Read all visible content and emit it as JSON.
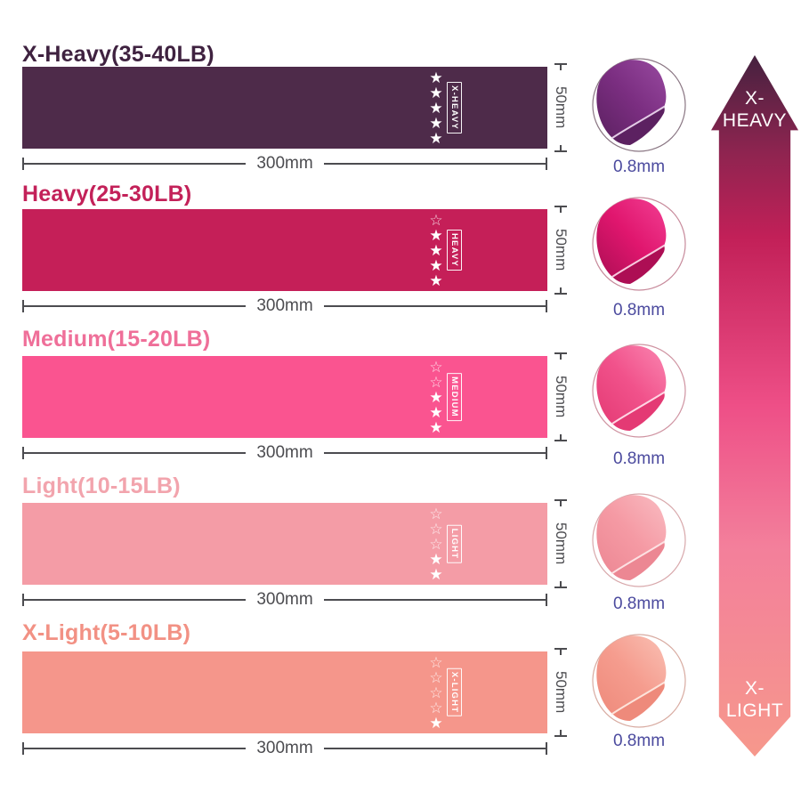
{
  "bands": [
    {
      "title": "X-Heavy(35-40LB)",
      "title_color": "#3f2240",
      "band_color": "#4e2b4a",
      "label": "X-HEAVY",
      "stars_filled": 5,
      "stars_outline": 0,
      "width_label": "300mm",
      "height_label": "50mm",
      "thickness_label": "0.8mm",
      "circle_colors": {
        "dark": "#5c2161",
        "main": "#7b2e81",
        "light": "#984aa0",
        "edge": "#e3cce6",
        "ring": "#8a7683"
      }
    },
    {
      "title": "Heavy(25-30LB)",
      "title_color": "#c32159",
      "band_color": "#c51f58",
      "label": "HEAVY",
      "stars_filled": 4,
      "stars_outline": 1,
      "width_label": "300mm",
      "height_label": "50mm",
      "thickness_label": "0.8mm",
      "circle_colors": {
        "dark": "#ad0e54",
        "main": "#e0166e",
        "light": "#f23f93",
        "edge": "#f7cade",
        "ring": "#c78a9b"
      }
    },
    {
      "title": "Medium(15-20LB)",
      "title_color": "#ef6f99",
      "band_color": "#fa5490",
      "label": "MEDIUM",
      "stars_filled": 3,
      "stars_outline": 2,
      "width_label": "300mm",
      "height_label": "50mm",
      "thickness_label": "0.8mm",
      "circle_colors": {
        "dark": "#e43a74",
        "main": "#f1528b",
        "light": "#fa86b1",
        "edge": "#ffd6e4",
        "ring": "#cf93a1"
      }
    },
    {
      "title": "Light(10-15LB)",
      "title_color": "#f2a4ad",
      "band_color": "#f49ca6",
      "label": "LIGHT",
      "stars_filled": 2,
      "stars_outline": 3,
      "width_label": "300mm",
      "height_label": "50mm",
      "thickness_label": "0.8mm",
      "circle_colors": {
        "dark": "#ec8793",
        "main": "#f59aa4",
        "light": "#f9bcc2",
        "edge": "#fde1e3",
        "ring": "#d8a8ab"
      }
    },
    {
      "title": "X-Light(5-10LB)",
      "title_color": "#f29184",
      "band_color": "#f5968b",
      "label": "X-LIGHT",
      "stars_filled": 1,
      "stars_outline": 4,
      "width_label": "300mm",
      "height_label": "50mm",
      "thickness_label": "0.8mm",
      "circle_colors": {
        "dark": "#ee8a7b",
        "main": "#f59c8e",
        "light": "#f9c0b4",
        "edge": "#fde3da",
        "ring": "#d8aba1"
      }
    }
  ],
  "icons": {
    "star_filled": "★",
    "star_outline": "☆"
  },
  "arrow": {
    "top_label": "X-\nHEAVY",
    "bottom_label": "X-\nLIGHT",
    "gradient": [
      "#45223f",
      "#8f2450",
      "#c22058",
      "#ee4f87",
      "#f37f9b",
      "#f6988c"
    ]
  },
  "dimension_color": "#4c4c50",
  "thickness_text_color": "#4b4a9e"
}
